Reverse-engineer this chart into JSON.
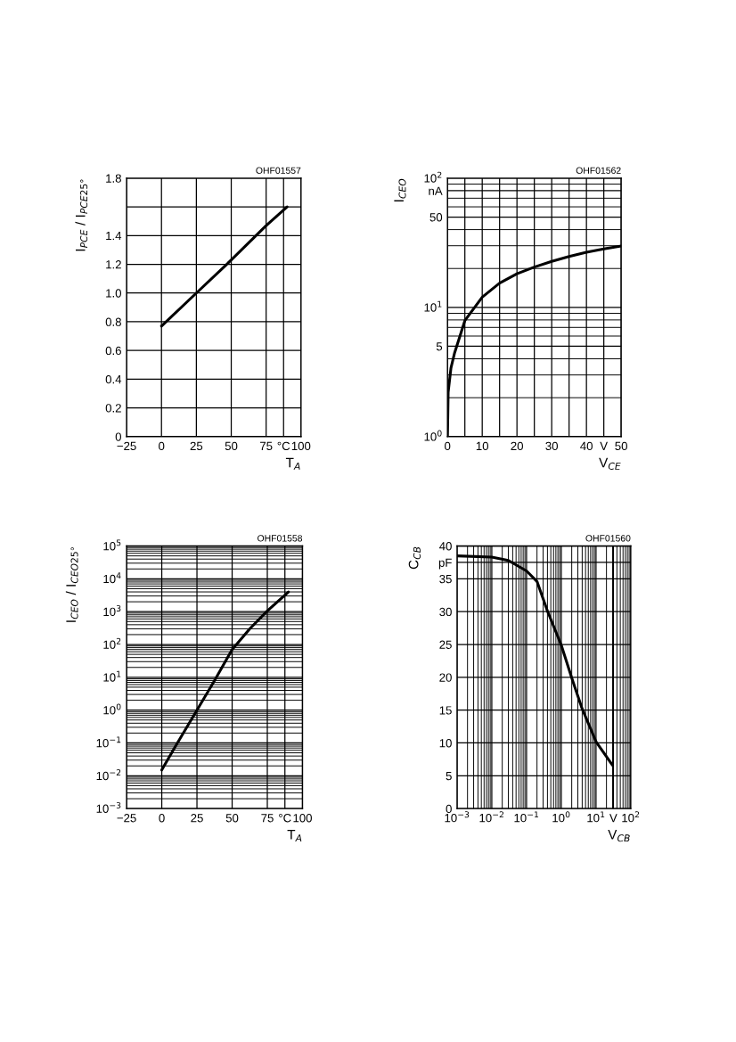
{
  "chart_data": [
    {
      "type": "line",
      "xlabel": "T$_{A}$",
      "ylabel": "I$_{PCE}$ / I$_{PCE25°}$",
      "annotations": [
        "OHF01557"
      ],
      "x": [
        0,
        25,
        50,
        75,
        90
      ],
      "series": [
        {
          "color": "#000000",
          "values": [
            0.77,
            1.0,
            1.23,
            1.47,
            1.6
          ]
        }
      ],
      "xlim": [
        -25,
        100
      ],
      "ylim": [
        0,
        1.8
      ],
      "xticks": [
        {
          "value": -25,
          "label": "−25"
        },
        0,
        25,
        50,
        75,
        {
          "value": 87.5,
          "label": "°C"
        },
        100
      ],
      "yticks": [
        0,
        0.2,
        0.4,
        0.6,
        0.8,
        {
          "value": 1,
          "label": "1.0"
        },
        1.2,
        1.4,
        {
          "value": 1.6,
          "label": null
        },
        1.8
      ],
      "grid": true,
      "line_style": "solid"
    },
    {
      "type": "line",
      "xlabel": "V$_{CE}$",
      "ylabel": "I$_{CEO}$",
      "annotations": [
        "OHF01562"
      ],
      "x": [
        0,
        0.2,
        1,
        2,
        5,
        10,
        15,
        20,
        25,
        30,
        35,
        40,
        45,
        50
      ],
      "series": [
        {
          "color": "#000000",
          "values": [
            1,
            2.2,
            3.4,
            4.4,
            7.9,
            12,
            15.4,
            18.2,
            20.5,
            22.7,
            24.8,
            26.7,
            28.3,
            29.8
          ]
        }
      ],
      "xlim": [
        0,
        50
      ],
      "ylim": [
        1,
        100
      ],
      "log": "y",
      "xticks": [
        0,
        {
          "value": 5,
          "label": null
        },
        10,
        {
          "value": 15,
          "label": null
        },
        20,
        {
          "value": 25,
          "label": null
        },
        30,
        {
          "value": 35,
          "label": null
        },
        40,
        {
          "value": 45,
          "label": "V"
        },
        50
      ],
      "yticks": [
        {
          "value": 1,
          "label": "10$^{0}$"
        },
        5,
        {
          "value": 10,
          "label": "10$^{1}$"
        },
        50,
        {
          "value": 80,
          "label": "nA"
        },
        {
          "value": 100,
          "label": "10$^{2}$"
        }
      ],
      "grid": true,
      "line_style": "solid"
    },
    {
      "type": "line",
      "xlabel": "T$_{A}$",
      "ylabel": "I$_{CEO}$ / I$_{CEO25°}$",
      "annotations": [
        "OHF01558"
      ],
      "x": [
        0,
        10,
        25,
        37.5,
        50,
        62.5,
        75,
        90
      ],
      "series": [
        {
          "color": "#000000",
          "values": [
            0.015,
            0.083,
            1.0,
            8,
            70,
            300,
            1050,
            4000
          ]
        }
      ],
      "xlim": [
        -25,
        100
      ],
      "ylim": [
        0.001,
        100000
      ],
      "log": "y",
      "xticks": [
        {
          "value": -25,
          "label": "−25"
        },
        0,
        25,
        50,
        75,
        {
          "value": 87.5,
          "label": "°C"
        },
        100
      ],
      "yticks": [
        {
          "value": 0.001,
          "label": "10$^{−3}$"
        },
        {
          "value": 0.01,
          "label": "10$^{−2}$"
        },
        {
          "value": 0.1,
          "label": "10$^{−1}$"
        },
        {
          "value": 1,
          "label": "10$^{0}$"
        },
        {
          "value": 10,
          "label": "10$^{1}$"
        },
        {
          "value": 100,
          "label": "10$^{2}$"
        },
        {
          "value": 1000,
          "label": "10$^{3}$"
        },
        {
          "value": 10000,
          "label": "10$^{4}$"
        },
        {
          "value": 100000,
          "label": "10$^{5}$"
        }
      ],
      "grid": true,
      "line_style": "solid"
    },
    {
      "type": "line",
      "xlabel": "V$_{CB}$",
      "ylabel": "C$_{CB}$",
      "annotations": [
        "OHF01560"
      ],
      "x": [
        0.001,
        0.01,
        0.03,
        0.1,
        0.2,
        0.4,
        1,
        2,
        4,
        10,
        30
      ],
      "series": [
        {
          "color": "#000000",
          "values": [
            38.5,
            38.3,
            37.8,
            36.2,
            34.6,
            30.1,
            24.9,
            19.9,
            15.2,
            10.2,
            6.6
          ]
        }
      ],
      "xlim": [
        0.001,
        100
      ],
      "ylim": [
        0,
        40
      ],
      "log": "x",
      "xticks": [
        {
          "value": 0.001,
          "label": "10$^{−3}$"
        },
        {
          "value": 0.01,
          "label": "10$^{−2}$"
        },
        {
          "value": 0.1,
          "label": "10$^{−1}$"
        },
        {
          "value": 1,
          "label": "10$^{0}$"
        },
        {
          "value": 10,
          "label": "10$^{1}$"
        },
        {
          "value": 31.6,
          "label": "V"
        },
        {
          "value": 100,
          "label": "10$^{2}$"
        }
      ],
      "yticks": [
        0,
        5,
        10,
        15,
        20,
        25,
        30,
        35,
        {
          "value": 37.5,
          "label": "pF"
        },
        40
      ],
      "grid": true,
      "line_style": "solid"
    }
  ]
}
